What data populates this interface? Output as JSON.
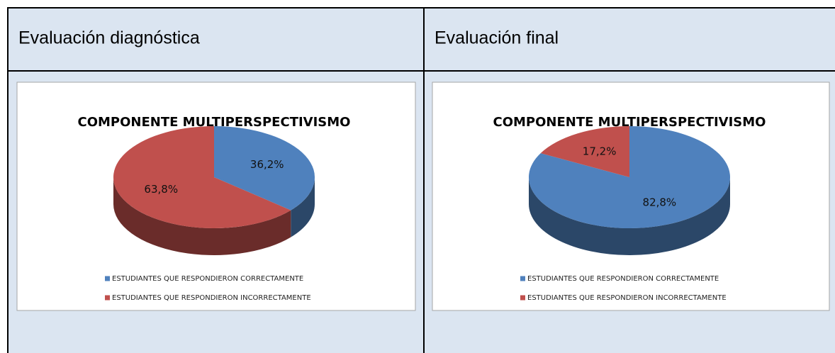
{
  "table": {
    "headers": [
      "Evaluación diagnóstica",
      "Evaluación final"
    ]
  },
  "chart_data": [
    {
      "type": "pie",
      "title": "COMPONENTE MULTIPERSPECTIVISMO",
      "categories": [
        "ESTUDIANTES QUE RESPONDIERON CORRECTAMENTE",
        "ESTUDIANTES QUE RESPONDIERON INCORRECTAMENTE"
      ],
      "values": [
        36.2,
        63.8
      ],
      "value_labels": [
        "36,2%",
        "63,8%"
      ],
      "colors": [
        "#4f81bd",
        "#c0504d"
      ]
    },
    {
      "type": "pie",
      "title": "COMPONENTE MULTIPERSPECTIVISMO",
      "categories": [
        "ESTUDIANTES QUE RESPONDIERON CORRECTAMENTE",
        "ESTUDIANTES QUE RESPONDIERON INCORRECTAMENTE"
      ],
      "values": [
        82.8,
        17.2
      ],
      "value_labels": [
        "82,8%",
        "17,2%"
      ],
      "colors": [
        "#4f81bd",
        "#c0504d"
      ]
    }
  ]
}
